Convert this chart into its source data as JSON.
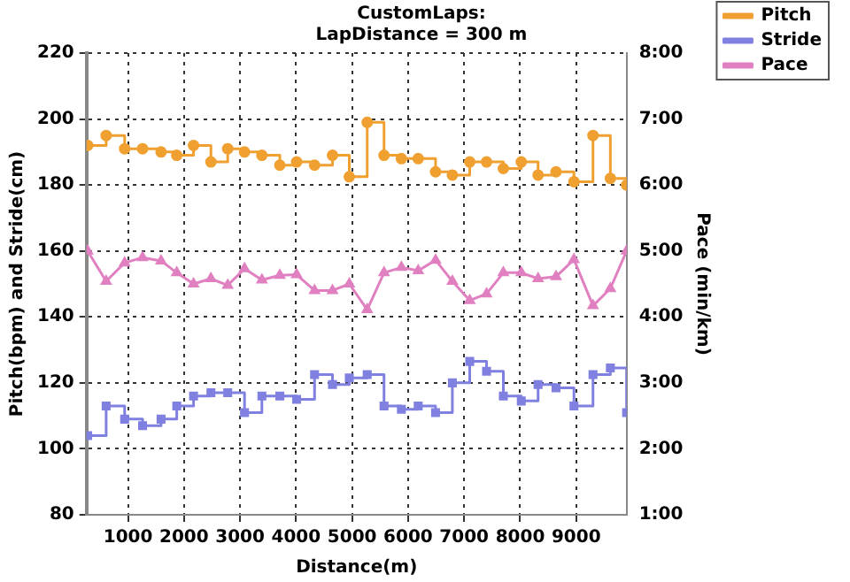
{
  "chart_data": {
    "type": "step",
    "title": "CustomLaps:",
    "subtitle": "LapDistance = 300 m",
    "xlabel": "Distance(m)",
    "ylabel": "Pitch(bpm) and Stride(cm)",
    "y2label": "Pace (min/km)",
    "x": [
      280,
      610,
      940,
      1260,
      1590,
      1870,
      2170,
      2480,
      2780,
      3080,
      3390,
      3710,
      4010,
      4330,
      4650,
      4950,
      5270,
      5570,
      5880,
      6180,
      6490,
      6790,
      7100,
      7400,
      7700,
      8020,
      8320,
      8640,
      8960,
      9300,
      9610,
      9900
    ],
    "series": [
      {
        "name": "Pitch",
        "color": "#f0a030",
        "marker": "circle",
        "values": [
          192,
          195,
          191,
          191,
          190,
          189,
          192,
          187,
          191,
          190,
          189,
          186,
          187,
          186,
          189,
          182.5,
          199,
          189,
          188,
          188,
          184,
          183,
          187,
          187,
          185,
          187,
          183,
          184,
          181,
          195,
          182,
          180
        ]
      },
      {
        "name": "Stride",
        "color": "#8080e0",
        "marker": "square",
        "values": [
          104,
          113,
          109,
          107,
          109,
          113,
          116,
          117,
          117,
          111,
          116,
          116,
          115,
          122.5,
          119.5,
          121.5,
          122.5,
          113,
          112,
          113,
          111,
          120,
          126.5,
          123.5,
          116,
          114.5,
          119.5,
          118.5,
          113,
          122.5,
          124.5,
          111
        ]
      },
      {
        "name": "Pace",
        "color": "#e080c0",
        "type": "line",
        "marker": "triangle",
        "axis": "y2",
        "values": [
          5.0,
          4.54,
          4.82,
          4.9,
          4.85,
          4.67,
          4.5,
          4.58,
          4.48,
          4.73,
          4.56,
          4.63,
          4.64,
          4.4,
          4.4,
          4.5,
          4.11,
          4.67,
          4.75,
          4.7,
          4.86,
          4.54,
          4.25,
          4.35,
          4.67,
          4.67,
          4.58,
          4.61,
          4.87,
          4.17,
          4.43,
          5.0
        ]
      }
    ],
    "xlim": [
      260,
      9900
    ],
    "xticks": [
      1000,
      2000,
      3000,
      4000,
      5000,
      6000,
      7000,
      8000,
      9000
    ],
    "ylim": [
      80,
      220
    ],
    "yticks": [
      80,
      100,
      120,
      140,
      160,
      180,
      200,
      220
    ],
    "y2lim": [
      1,
      8
    ],
    "y2ticks": [
      {
        "value": 1,
        "label": "1:00"
      },
      {
        "value": 2,
        "label": "2:00"
      },
      {
        "value": 3,
        "label": "3:00"
      },
      {
        "value": 4,
        "label": "4:00"
      },
      {
        "value": 5,
        "label": "5:00"
      },
      {
        "value": 6,
        "label": "6:00"
      },
      {
        "value": 7,
        "label": "7:00"
      },
      {
        "value": 8,
        "label": "8:00"
      }
    ],
    "grid": true,
    "legend": "top right",
    "line_style": "solid"
  }
}
